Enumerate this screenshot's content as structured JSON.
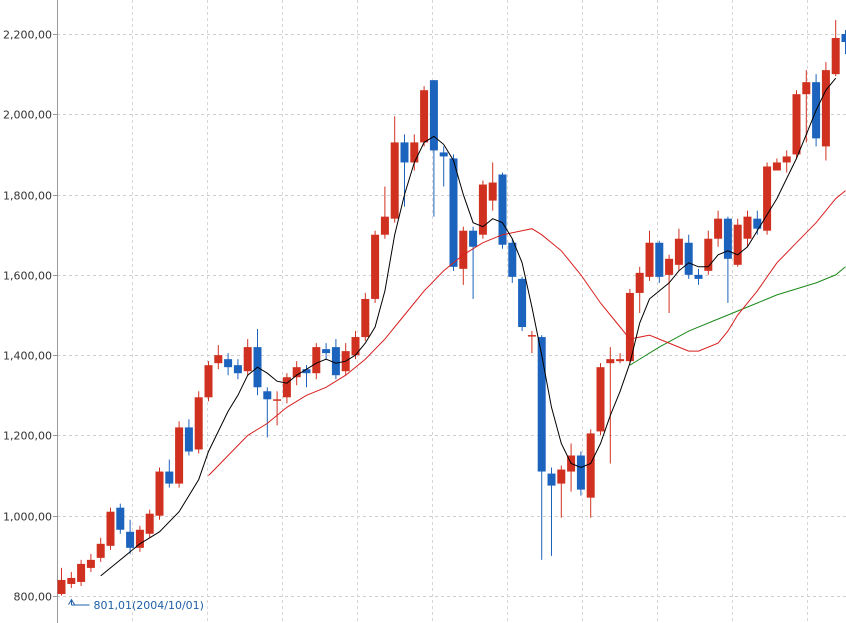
{
  "chart_data": {
    "type": "candlestick",
    "y_ticks": [
      "800,00",
      "1,000,00",
      "1,200,00",
      "1,400,00",
      "1,600,00",
      "1,800,00",
      "2,000,00",
      "2,200,00"
    ],
    "y_tick_values": [
      800,
      1000,
      1200,
      1400,
      1600,
      1800,
      2000,
      2200
    ],
    "ylim": [
      760,
      2255
    ],
    "grid": true,
    "colors": {
      "up": "#d0301f",
      "down": "#1c63bd",
      "ma_short": "#000000",
      "ma_mid": "#d81e1e",
      "ma_long": "#1a8a1a",
      "annotation": "#1f5fa8"
    },
    "annotation": {
      "text": "801,01(2004/10/01)",
      "value": 801.01,
      "index": 0
    },
    "candles": [
      [
        805,
        840,
        870,
        801
      ],
      [
        830,
        845,
        860,
        820
      ],
      [
        835,
        880,
        890,
        825
      ],
      [
        870,
        890,
        905,
        860
      ],
      [
        895,
        930,
        945,
        885
      ],
      [
        925,
        1010,
        1020,
        915
      ],
      [
        1020,
        965,
        1030,
        955
      ],
      [
        960,
        920,
        990,
        905
      ],
      [
        920,
        965,
        975,
        910
      ],
      [
        955,
        1005,
        1015,
        945
      ],
      [
        1000,
        1110,
        1120,
        990
      ],
      [
        1110,
        1080,
        1140,
        1070
      ],
      [
        1080,
        1220,
        1235,
        1070
      ],
      [
        1220,
        1160,
        1240,
        1150
      ],
      [
        1165,
        1295,
        1310,
        1155
      ],
      [
        1295,
        1375,
        1385,
        1285
      ],
      [
        1380,
        1400,
        1425,
        1365
      ],
      [
        1390,
        1370,
        1405,
        1350
      ],
      [
        1375,
        1355,
        1390,
        1340
      ],
      [
        1360,
        1420,
        1440,
        1350
      ],
      [
        1420,
        1320,
        1465,
        1300
      ],
      [
        1310,
        1290,
        1320,
        1195
      ],
      [
        1290,
        1290,
        1310,
        1225
      ],
      [
        1295,
        1345,
        1355,
        1280
      ],
      [
        1345,
        1370,
        1385,
        1325
      ],
      [
        1365,
        1355,
        1375,
        1320
      ],
      [
        1355,
        1420,
        1430,
        1340
      ],
      [
        1415,
        1405,
        1430,
        1390
      ],
      [
        1420,
        1350,
        1440,
        1340
      ],
      [
        1360,
        1410,
        1430,
        1350
      ],
      [
        1400,
        1445,
        1460,
        1390
      ],
      [
        1445,
        1540,
        1555,
        1435
      ],
      [
        1540,
        1700,
        1710,
        1530
      ],
      [
        1700,
        1745,
        1820,
        1690
      ],
      [
        1740,
        1930,
        1995,
        1730
      ],
      [
        1930,
        1880,
        1950,
        1770
      ],
      [
        1880,
        1930,
        1950,
        1860
      ],
      [
        1930,
        2060,
        2070,
        1920
      ],
      [
        2085,
        1910,
        2085,
        1745
      ],
      [
        1905,
        1895,
        1920,
        1820
      ],
      [
        1890,
        1620,
        1900,
        1610
      ],
      [
        1615,
        1710,
        1720,
        1575
      ],
      [
        1710,
        1670,
        1720,
        1540
      ],
      [
        1700,
        1825,
        1835,
        1690
      ],
      [
        1785,
        1830,
        1880,
        1760
      ],
      [
        1850,
        1675,
        1855,
        1665
      ],
      [
        1680,
        1595,
        1690,
        1580
      ],
      [
        1590,
        1470,
        1595,
        1460
      ],
      [
        1450,
        1450,
        1460,
        1405
      ],
      [
        1445,
        1110,
        1450,
        890
      ],
      [
        1105,
        1075,
        1120,
        900
      ],
      [
        1080,
        1115,
        1125,
        995
      ],
      [
        1110,
        1150,
        1180,
        1060
      ],
      [
        1150,
        1065,
        1160,
        1050
      ],
      [
        1045,
        1205,
        1215,
        995
      ],
      [
        1210,
        1370,
        1380,
        1200
      ],
      [
        1380,
        1390,
        1420,
        1130
      ],
      [
        1385,
        1390,
        1405,
        1380
      ],
      [
        1385,
        1555,
        1565,
        1380
      ],
      [
        1555,
        1605,
        1620,
        1505
      ],
      [
        1595,
        1680,
        1710,
        1585
      ],
      [
        1680,
        1595,
        1685,
        1580
      ],
      [
        1600,
        1640,
        1650,
        1505
      ],
      [
        1625,
        1690,
        1715,
        1610
      ],
      [
        1680,
        1600,
        1700,
        1590
      ],
      [
        1600,
        1590,
        1615,
        1575
      ],
      [
        1610,
        1690,
        1710,
        1600
      ],
      [
        1690,
        1740,
        1760,
        1670
      ],
      [
        1740,
        1640,
        1745,
        1530
      ],
      [
        1625,
        1725,
        1740,
        1620
      ],
      [
        1690,
        1745,
        1760,
        1670
      ],
      [
        1740,
        1715,
        1760,
        1700
      ],
      [
        1710,
        1870,
        1880,
        1700
      ],
      [
        1860,
        1880,
        1890,
        1860
      ],
      [
        1880,
        1895,
        1910,
        1855
      ],
      [
        1900,
        2050,
        2060,
        1890
      ],
      [
        2050,
        2080,
        2110,
        1930
      ],
      [
        2080,
        1940,
        2100,
        1920
      ],
      [
        1920,
        2110,
        2130,
        1885
      ],
      [
        2100,
        2190,
        2235,
        2095
      ],
      [
        2200,
        2180,
        2210,
        2150
      ]
    ],
    "ma_short": [
      [
        4,
        850
      ],
      [
        6,
        890
      ],
      [
        8,
        930
      ],
      [
        10,
        960
      ],
      [
        12,
        1010
      ],
      [
        14,
        1090
      ],
      [
        15,
        1160
      ],
      [
        17,
        1260
      ],
      [
        18,
        1300
      ],
      [
        19,
        1350
      ],
      [
        20,
        1370
      ],
      [
        21,
        1355
      ],
      [
        22,
        1335
      ],
      [
        23,
        1330
      ],
      [
        24,
        1350
      ],
      [
        25,
        1365
      ],
      [
        26,
        1380
      ],
      [
        27,
        1390
      ],
      [
        28,
        1380
      ],
      [
        29,
        1385
      ],
      [
        30,
        1400
      ],
      [
        31,
        1430
      ],
      [
        32,
        1470
      ],
      [
        33,
        1560
      ],
      [
        34,
        1700
      ],
      [
        35,
        1800
      ],
      [
        36,
        1880
      ],
      [
        37,
        1930
      ],
      [
        38,
        1945
      ],
      [
        39,
        1925
      ],
      [
        40,
        1885
      ],
      [
        41,
        1800
      ],
      [
        42,
        1730
      ],
      [
        43,
        1720
      ],
      [
        44,
        1740
      ],
      [
        45,
        1730
      ],
      [
        46,
        1690
      ],
      [
        47,
        1630
      ],
      [
        48,
        1520
      ],
      [
        49,
        1400
      ],
      [
        50,
        1270
      ],
      [
        51,
        1180
      ],
      [
        52,
        1130
      ],
      [
        53,
        1120
      ],
      [
        54,
        1130
      ],
      [
        55,
        1180
      ],
      [
        56,
        1250
      ],
      [
        57,
        1310
      ],
      [
        58,
        1380
      ],
      [
        59,
        1480
      ],
      [
        60,
        1540
      ],
      [
        61,
        1560
      ],
      [
        62,
        1580
      ],
      [
        63,
        1610
      ],
      [
        64,
        1630
      ],
      [
        65,
        1620
      ],
      [
        66,
        1620
      ],
      [
        67,
        1650
      ],
      [
        68,
        1660
      ],
      [
        69,
        1650
      ],
      [
        70,
        1670
      ],
      [
        71,
        1710
      ],
      [
        72,
        1750
      ],
      [
        73,
        1790
      ],
      [
        74,
        1840
      ],
      [
        75,
        1890
      ],
      [
        76,
        1950
      ],
      [
        77,
        2010
      ],
      [
        78,
        2060
      ],
      [
        79,
        2090
      ]
    ],
    "ma_mid": [
      [
        15,
        1100
      ],
      [
        17,
        1150
      ],
      [
        19,
        1200
      ],
      [
        21,
        1230
      ],
      [
        23,
        1270
      ],
      [
        25,
        1300
      ],
      [
        27,
        1320
      ],
      [
        29,
        1350
      ],
      [
        31,
        1390
      ],
      [
        33,
        1440
      ],
      [
        35,
        1500
      ],
      [
        37,
        1560
      ],
      [
        39,
        1610
      ],
      [
        41,
        1650
      ],
      [
        43,
        1680
      ],
      [
        45,
        1700
      ],
      [
        47,
        1710
      ],
      [
        48,
        1715
      ],
      [
        49,
        1700
      ],
      [
        51,
        1660
      ],
      [
        53,
        1600
      ],
      [
        55,
        1530
      ],
      [
        57,
        1470
      ],
      [
        58,
        1440
      ],
      [
        60,
        1450
      ],
      [
        62,
        1430
      ],
      [
        64,
        1410
      ],
      [
        65,
        1410
      ],
      [
        67,
        1430
      ],
      [
        68,
        1460
      ],
      [
        69,
        1500
      ],
      [
        71,
        1560
      ],
      [
        73,
        1630
      ],
      [
        75,
        1680
      ],
      [
        77,
        1730
      ],
      [
        79,
        1790
      ],
      [
        80,
        1810
      ]
    ],
    "ma_long": [
      [
        58,
        1375
      ],
      [
        61,
        1420
      ],
      [
        64,
        1460
      ],
      [
        67,
        1490
      ],
      [
        69,
        1510
      ],
      [
        71,
        1530
      ],
      [
        73,
        1550
      ],
      [
        75,
        1565
      ],
      [
        77,
        1580
      ],
      [
        79,
        1600
      ],
      [
        80,
        1620
      ]
    ]
  }
}
